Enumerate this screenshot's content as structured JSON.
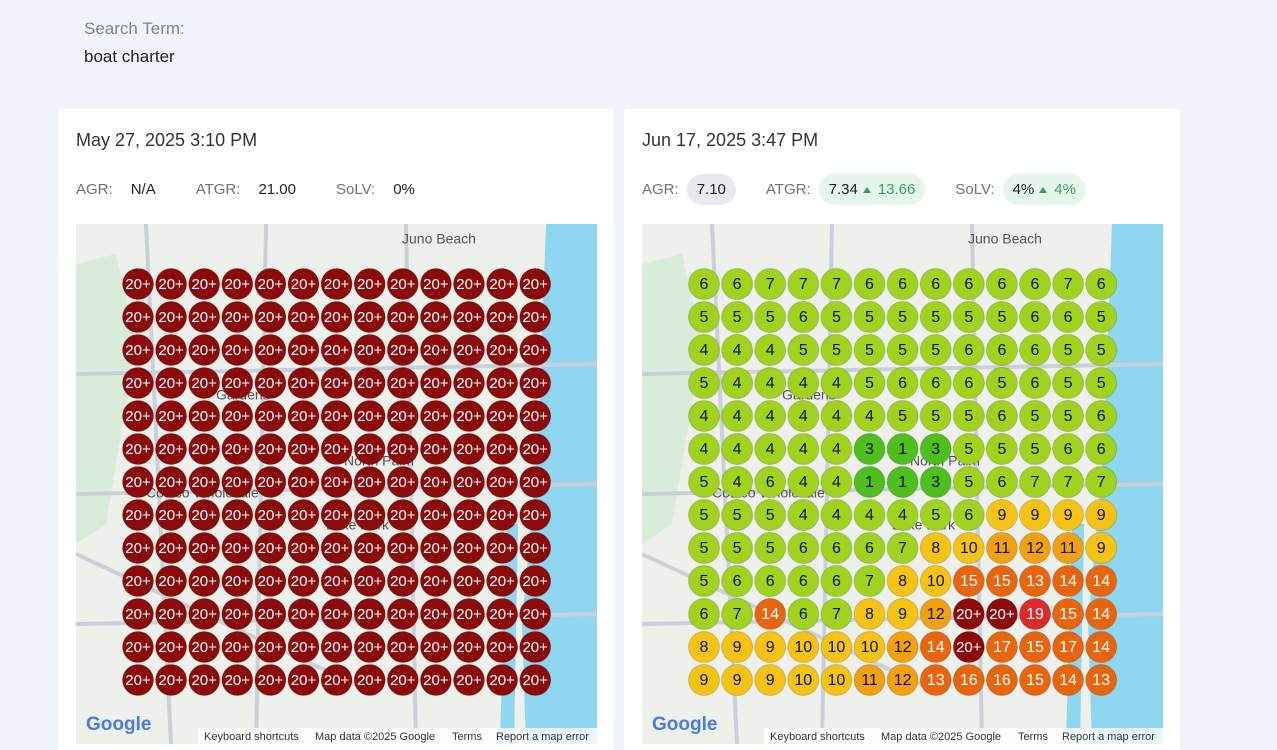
{
  "search": {
    "label": "Search Term:",
    "term": "boat charter"
  },
  "map": {
    "places": [
      "Juno Beach",
      "Gardens",
      "North Palm",
      "Lake Park",
      "Costco Wholesale"
    ],
    "logo": "Google",
    "footer": [
      "Keyboard shortcuts",
      "Map data ©2025 Google",
      "Terms",
      "Report a map error"
    ]
  },
  "reports": [
    {
      "date": "May 27, 2025 3:10 PM",
      "metrics": [
        {
          "label": "AGR:",
          "value": "N/A"
        },
        {
          "label": "ATGR:",
          "value": "21.00"
        },
        {
          "label": "SoLV:",
          "value": "0%"
        }
      ],
      "grid": [
        [
          "20+",
          "20+",
          "20+",
          "20+",
          "20+",
          "20+",
          "20+",
          "20+",
          "20+",
          "20+",
          "20+",
          "20+",
          "20+"
        ],
        [
          "20+",
          "20+",
          "20+",
          "20+",
          "20+",
          "20+",
          "20+",
          "20+",
          "20+",
          "20+",
          "20+",
          "20+",
          "20+"
        ],
        [
          "20+",
          "20+",
          "20+",
          "20+",
          "20+",
          "20+",
          "20+",
          "20+",
          "20+",
          "20+",
          "20+",
          "20+",
          "20+"
        ],
        [
          "20+",
          "20+",
          "20+",
          "20+",
          "20+",
          "20+",
          "20+",
          "20+",
          "20+",
          "20+",
          "20+",
          "20+",
          "20+"
        ],
        [
          "20+",
          "20+",
          "20+",
          "20+",
          "20+",
          "20+",
          "20+",
          "20+",
          "20+",
          "20+",
          "20+",
          "20+",
          "20+"
        ],
        [
          "20+",
          "20+",
          "20+",
          "20+",
          "20+",
          "20+",
          "20+",
          "20+",
          "20+",
          "20+",
          "20+",
          "20+",
          "20+"
        ],
        [
          "20+",
          "20+",
          "20+",
          "20+",
          "20+",
          "20+",
          "20+",
          "20+",
          "20+",
          "20+",
          "20+",
          "20+",
          "20+"
        ],
        [
          "20+",
          "20+",
          "20+",
          "20+",
          "20+",
          "20+",
          "20+",
          "20+",
          "20+",
          "20+",
          "20+",
          "20+",
          "20+"
        ],
        [
          "20+",
          "20+",
          "20+",
          "20+",
          "20+",
          "20+",
          "20+",
          "20+",
          "20+",
          "20+",
          "20+",
          "20+",
          "20+"
        ],
        [
          "20+",
          "20+",
          "20+",
          "20+",
          "20+",
          "20+",
          "20+",
          "20+",
          "20+",
          "20+",
          "20+",
          "20+",
          "20+"
        ],
        [
          "20+",
          "20+",
          "20+",
          "20+",
          "20+",
          "20+",
          "20+",
          "20+",
          "20+",
          "20+",
          "20+",
          "20+",
          "20+"
        ],
        [
          "20+",
          "20+",
          "20+",
          "20+",
          "20+",
          "20+",
          "20+",
          "20+",
          "20+",
          "20+",
          "20+",
          "20+",
          "20+"
        ],
        [
          "20+",
          "20+",
          "20+",
          "20+",
          "20+",
          "20+",
          "20+",
          "20+",
          "20+",
          "20+",
          "20+",
          "20+",
          "20+"
        ]
      ]
    },
    {
      "date": "Jun 17, 2025 3:47 PM",
      "metrics": [
        {
          "label": "AGR:",
          "value": "7.10"
        },
        {
          "label": "ATGR:",
          "value": "7.34",
          "change": "13.66"
        },
        {
          "label": "SoLV:",
          "value": "4%",
          "change": "4%"
        }
      ],
      "grid": [
        [
          "6",
          "6",
          "7",
          "7",
          "7",
          "6",
          "6",
          "6",
          "6",
          "6",
          "6",
          "7",
          "6"
        ],
        [
          "5",
          "5",
          "5",
          "6",
          "5",
          "5",
          "5",
          "5",
          "5",
          "5",
          "6",
          "6",
          "5"
        ],
        [
          "4",
          "4",
          "4",
          "5",
          "5",
          "5",
          "5",
          "5",
          "6",
          "6",
          "6",
          "5",
          "5"
        ],
        [
          "5",
          "4",
          "4",
          "4",
          "4",
          "5",
          "6",
          "6",
          "6",
          "5",
          "6",
          "5",
          "5"
        ],
        [
          "4",
          "4",
          "4",
          "4",
          "4",
          "4",
          "5",
          "5",
          "5",
          "6",
          "5",
          "5",
          "6"
        ],
        [
          "4",
          "4",
          "4",
          "4",
          "4",
          "3",
          "1",
          "3",
          "5",
          "5",
          "5",
          "6",
          "6"
        ],
        [
          "5",
          "4",
          "6",
          "4",
          "4",
          "1",
          "1",
          "3",
          "5",
          "6",
          "7",
          "7",
          "7"
        ],
        [
          "5",
          "5",
          "5",
          "4",
          "4",
          "4",
          "4",
          "5",
          "6",
          "9",
          "9",
          "9",
          "9"
        ],
        [
          "5",
          "5",
          "5",
          "6",
          "6",
          "6",
          "7",
          "8",
          "10",
          "11",
          "12",
          "11",
          "9"
        ],
        [
          "5",
          "6",
          "6",
          "6",
          "6",
          "7",
          "8",
          "10",
          "15",
          "15",
          "13",
          "14",
          "14"
        ],
        [
          "6",
          "7",
          "14",
          "6",
          "7",
          "8",
          "9",
          "12",
          "20+",
          "20+",
          "19",
          "15",
          "14"
        ],
        [
          "8",
          "9",
          "9",
          "10",
          "10",
          "10",
          "12",
          "14",
          "20+",
          "17",
          "15",
          "17",
          "14"
        ],
        [
          "9",
          "9",
          "9",
          "10",
          "10",
          "11",
          "12",
          "13",
          "16",
          "16",
          "15",
          "14",
          "13"
        ]
      ]
    }
  ]
}
